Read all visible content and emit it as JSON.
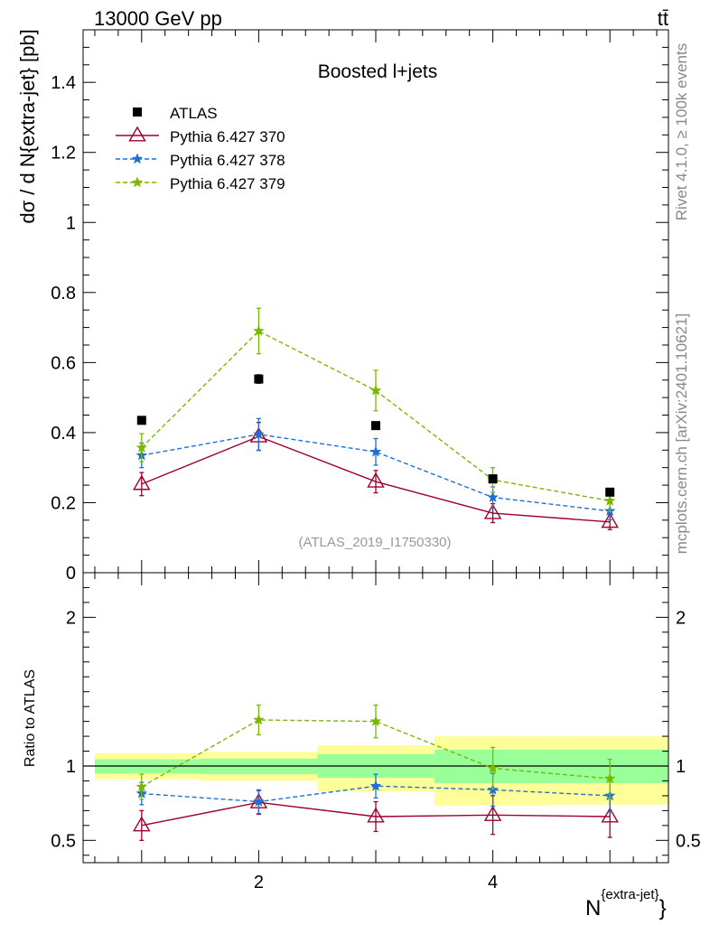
{
  "chart_data": {
    "type": "line",
    "header": {
      "left": "13000 GeV pp",
      "right": "tt̄"
    },
    "title": "Boosted l+jets",
    "analysis_label": "(ATLAS_2019_I1750330)",
    "side_labels": {
      "upper": "Rivet 4.1.0, ≥ 100k events",
      "lower": "mcplots.cern.ch [arXiv:2401.10621]"
    },
    "xlabel": "N{extra-jet}",
    "xlabel_main": "N",
    "xlabel_sup": "{extra-jet}",
    "xlabel_close": "}",
    "ylabel_main": "dσ / d N{extra-jet} [pb]",
    "ylabel_ratio": "Ratio to ATLAS",
    "xlim": [
      0.5,
      5.5
    ],
    "x_ticks": [
      2,
      4
    ],
    "x_tick_labels": [
      "2",
      "4"
    ],
    "main_panel": {
      "ylim": [
        0,
        1.55
      ],
      "y_ticks": [
        0,
        0.2,
        0.4,
        0.6,
        0.8,
        1,
        1.2,
        1.4
      ],
      "y_tick_labels": [
        "0",
        "0.2",
        "0.4",
        "0.6",
        "0.8",
        "1",
        "1.2",
        "1.4"
      ],
      "data": {
        "name": "ATLAS",
        "x": [
          1,
          2,
          3,
          4,
          5
        ],
        "y": [
          0.435,
          0.553,
          0.42,
          0.268,
          0.23
        ],
        "err": [
          0.01,
          0.012,
          0.01,
          0.01,
          0.008
        ],
        "color": "#000000"
      },
      "series": [
        {
          "name": "Pythia 6.427 370",
          "x": [
            1,
            2,
            3,
            4,
            5
          ],
          "y": [
            0.253,
            0.389,
            0.26,
            0.17,
            0.145
          ],
          "err": [
            0.033,
            0.04,
            0.032,
            0.027,
            0.022
          ],
          "color": "#a0002a",
          "dashed": false,
          "marker": "triangle"
        },
        {
          "name": "Pythia 6.427 378",
          "x": [
            1,
            2,
            3,
            4,
            5
          ],
          "y": [
            0.335,
            0.395,
            0.345,
            0.215,
            0.176
          ],
          "err": [
            0.035,
            0.045,
            0.038,
            0.03,
            0.025
          ],
          "color": "#1f6fd6",
          "dashed": true,
          "marker": "star"
        },
        {
          "name": "Pythia 6.427 379",
          "x": [
            1,
            2,
            3,
            4,
            5
          ],
          "y": [
            0.357,
            0.69,
            0.52,
            0.265,
            0.205
          ],
          "err": [
            0.04,
            0.065,
            0.058,
            0.035,
            0.03
          ],
          "color": "#7ab800",
          "dashed": true,
          "marker": "star"
        }
      ]
    },
    "ratio_panel": {
      "ylim": [
        0.35,
        2.3
      ],
      "y_ticks": [
        0.5,
        1,
        2
      ],
      "y_tick_labels": [
        "0.5",
        "1",
        "2"
      ],
      "bands": [
        {
          "xlo": 0.6,
          "xhi": 1.5,
          "inner": [
            0.95,
            1.045
          ],
          "outer": [
            0.91,
            1.085
          ]
        },
        {
          "xlo": 1.5,
          "xhi": 2.5,
          "inner": [
            0.945,
            1.05
          ],
          "outer": [
            0.9,
            1.095
          ]
        },
        {
          "xlo": 2.5,
          "xhi": 3.5,
          "inner": [
            0.92,
            1.08
          ],
          "outer": [
            0.83,
            1.14
          ]
        },
        {
          "xlo": 3.5,
          "xhi": 4.5,
          "inner": [
            0.885,
            1.11
          ],
          "outer": [
            0.735,
            1.2
          ]
        },
        {
          "xlo": 4.5,
          "xhi": 5.5,
          "inner": [
            0.885,
            1.11
          ],
          "outer": [
            0.74,
            1.2
          ]
        }
      ],
      "series": [
        {
          "name": "Pythia 6.427 370",
          "y": [
            0.6,
            0.755,
            0.66,
            0.67,
            0.66
          ],
          "err": [
            0.1,
            0.08,
            0.1,
            0.13,
            0.14
          ]
        },
        {
          "name": "Pythia 6.427 378",
          "y": [
            0.815,
            0.76,
            0.865,
            0.84,
            0.8
          ],
          "err": [
            0.075,
            0.08,
            0.08,
            0.11,
            0.11
          ]
        },
        {
          "name": "Pythia 6.427 379",
          "y": [
            0.86,
            1.31,
            1.3,
            0.985,
            0.915
          ],
          "err": [
            0.085,
            0.1,
            0.11,
            0.14,
            0.13
          ]
        }
      ]
    }
  }
}
